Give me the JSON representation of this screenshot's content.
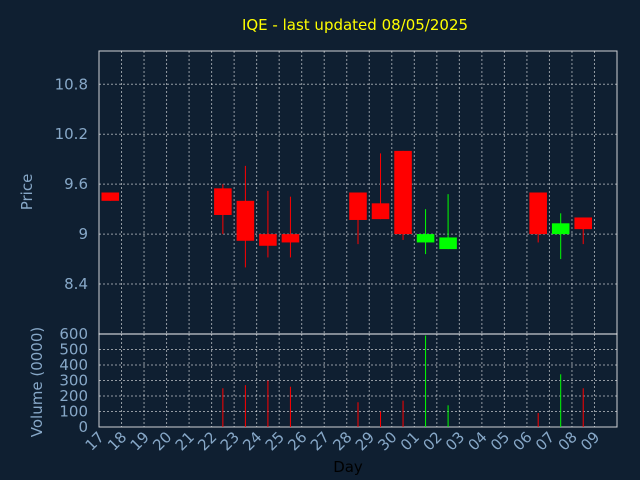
{
  "colors": {
    "background": "#0f1f31",
    "frame": "#ffffff",
    "grid": "#ffffff",
    "up": "#00ff00",
    "down": "#ff0000",
    "title": "#ffff00",
    "ticks": "#87a8c8"
  },
  "chart_data": {
    "type": "candlestick",
    "title": "IQE - last updated 08/05/2025",
    "xlabel": "Day",
    "price_ylabel": "Price",
    "volume_ylabel": "Volume (0000)",
    "grid": true,
    "days": [
      "17",
      "18",
      "19",
      "20",
      "21",
      "22",
      "23",
      "24",
      "25",
      "26",
      "27",
      "28",
      "29",
      "30",
      "01",
      "02",
      "03",
      "04",
      "05",
      "06",
      "07",
      "08",
      "09"
    ],
    "price_ylim": [
      7.8,
      11.2
    ],
    "price_ticks": [
      "8.4",
      "9",
      "9.6",
      "10.2",
      "10.8"
    ],
    "price_tick_values": [
      8.4,
      9.0,
      9.6,
      10.2,
      10.8
    ],
    "volume_ylim": [
      0,
      600
    ],
    "volume_ticks": [
      "0",
      "100",
      "200",
      "300",
      "400",
      "500",
      "600"
    ],
    "volume_tick_values": [
      0,
      100,
      200,
      300,
      400,
      500,
      600
    ],
    "candles": [
      {
        "day": "17",
        "open": 9.5,
        "close": 9.4,
        "high": 9.5,
        "low": 9.4,
        "volume": 0
      },
      {
        "day": "22",
        "open": 9.55,
        "close": 9.23,
        "high": 9.6,
        "low": 9.0,
        "volume": 250
      },
      {
        "day": "23",
        "open": 9.4,
        "close": 8.92,
        "high": 9.82,
        "low": 8.6,
        "volume": 270
      },
      {
        "day": "24",
        "open": 9.0,
        "close": 8.86,
        "high": 9.52,
        "low": 8.72,
        "volume": 300
      },
      {
        "day": "25",
        "open": 9.0,
        "close": 8.9,
        "high": 9.45,
        "low": 8.72,
        "volume": 260
      },
      {
        "day": "28",
        "open": 9.5,
        "close": 9.17,
        "high": 9.5,
        "low": 8.88,
        "volume": 160
      },
      {
        "day": "29",
        "open": 9.37,
        "close": 9.18,
        "high": 9.97,
        "low": 9.18,
        "volume": 100
      },
      {
        "day": "30",
        "open": 10.0,
        "close": 9.0,
        "high": 10.0,
        "low": 8.93,
        "volume": 170
      },
      {
        "day": "01",
        "open": 8.9,
        "close": 9.0,
        "high": 9.3,
        "low": 8.76,
        "volume": 590
      },
      {
        "day": "02",
        "open": 8.82,
        "close": 8.96,
        "high": 9.48,
        "low": 8.82,
        "volume": 140
      },
      {
        "day": "06",
        "open": 9.5,
        "close": 9.0,
        "high": 9.5,
        "low": 8.9,
        "volume": 90
      },
      {
        "day": "07",
        "open": 9.0,
        "close": 9.13,
        "high": 9.25,
        "low": 8.7,
        "volume": 340
      },
      {
        "day": "08",
        "open": 9.2,
        "close": 9.06,
        "high": 9.2,
        "low": 8.88,
        "volume": 250
      }
    ]
  }
}
